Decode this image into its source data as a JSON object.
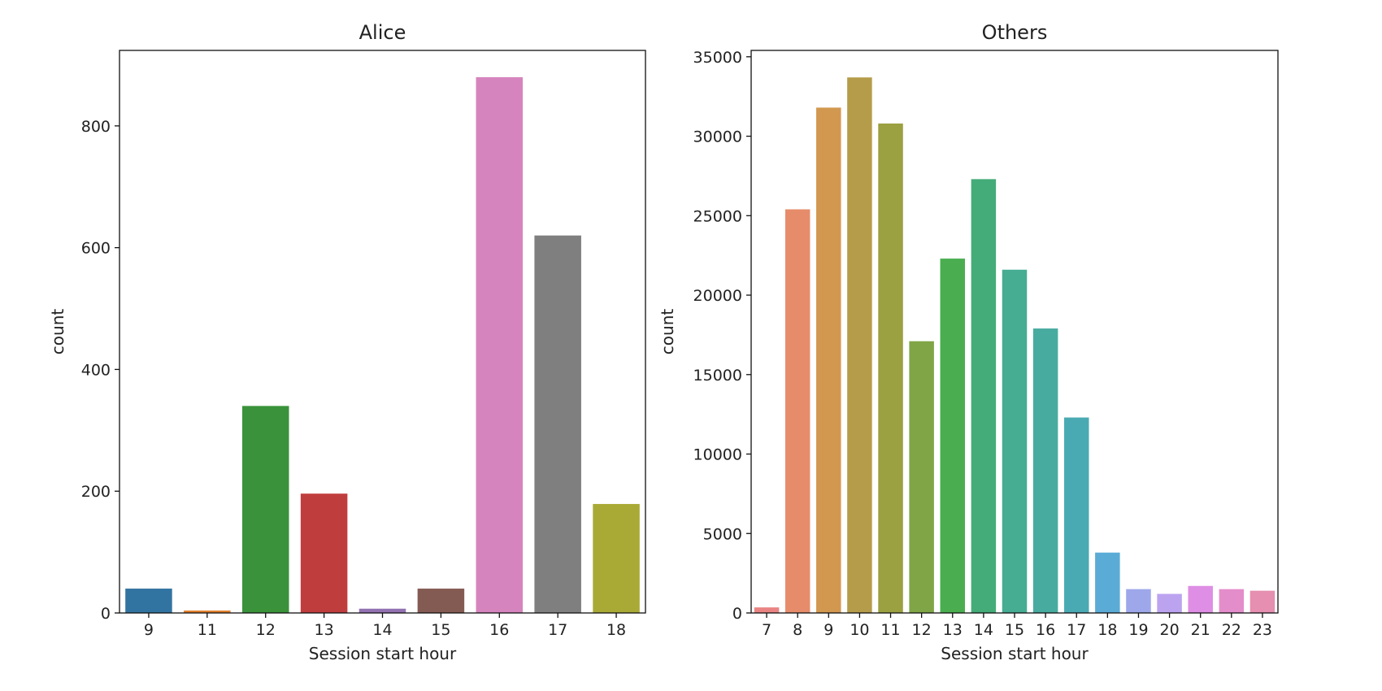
{
  "chart_data": [
    {
      "type": "bar",
      "title": "Alice",
      "xlabel": "Session start hour",
      "ylabel": "count",
      "categories": [
        "9",
        "11",
        "12",
        "13",
        "14",
        "15",
        "16",
        "17",
        "18"
      ],
      "values": [
        40,
        4,
        340,
        196,
        7,
        40,
        880,
        620,
        179
      ],
      "colors": [
        "#3274a1",
        "#e1812c",
        "#3a923a",
        "#c03d3e",
        "#9372b2",
        "#845b53",
        "#d684bd",
        "#7f7f7f",
        "#a9aa35"
      ],
      "ylim": [
        0,
        924
      ],
      "yticks": [
        0,
        200,
        400,
        600,
        800
      ],
      "grid": false
    },
    {
      "type": "bar",
      "title": "Others",
      "xlabel": "Session start hour",
      "ylabel": "count",
      "categories": [
        "7",
        "8",
        "9",
        "10",
        "11",
        "12",
        "13",
        "14",
        "15",
        "16",
        "17",
        "18",
        "19",
        "20",
        "21",
        "22",
        "23"
      ],
      "values": [
        350,
        25400,
        31800,
        33700,
        30800,
        17100,
        22300,
        27300,
        21600,
        17900,
        12300,
        3800,
        1500,
        1200,
        1700,
        1500,
        1400
      ],
      "colors": [
        "#e98482",
        "#e68c6a",
        "#d2984f",
        "#b59c4a",
        "#9ba040",
        "#80a546",
        "#4aae50",
        "#44ac78",
        "#46ac92",
        "#47ab9f",
        "#4aaab3",
        "#5aacd6",
        "#9da7ea",
        "#bca3ef",
        "#de8ee4",
        "#e48dcb",
        "#e68fb0"
      ],
      "ylim": [
        0,
        35400
      ],
      "yticks": [
        0,
        5000,
        10000,
        15000,
        20000,
        25000,
        30000,
        35000
      ],
      "grid": false
    }
  ]
}
